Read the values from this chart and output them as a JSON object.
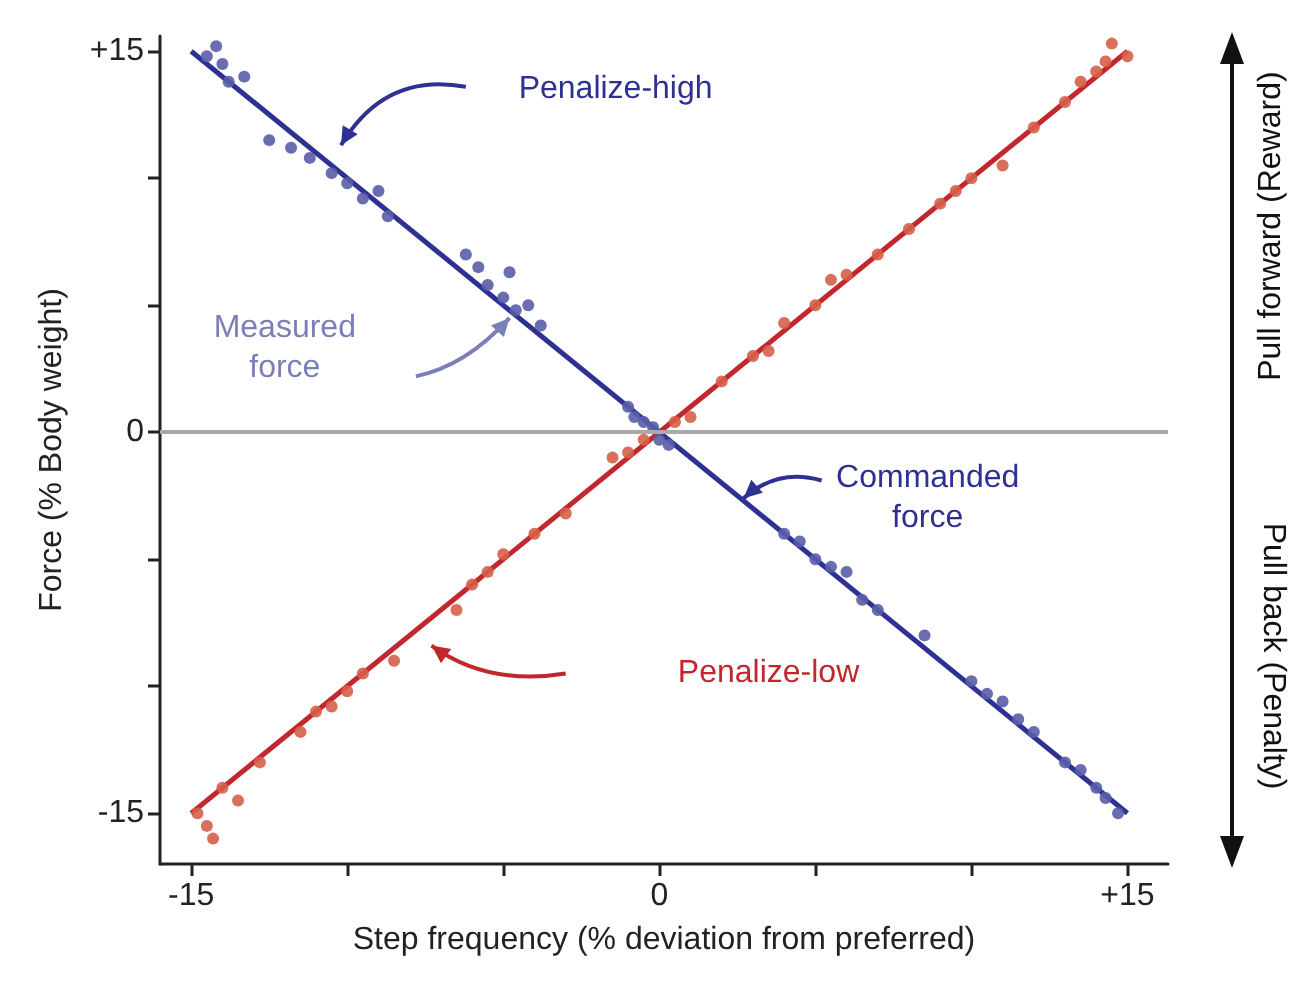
{
  "chart_data": {
    "type": "scatter",
    "xlabel": "Step frequency (% deviation from preferred)",
    "ylabel": "Force (% Body weight)",
    "xlim": [
      -16,
      16.3
    ],
    "ylim": [
      -17,
      15.6
    ],
    "xticks": [
      {
        "value": -15,
        "label": "-15"
      },
      {
        "value": -10,
        "label": null
      },
      {
        "value": -5,
        "label": null
      },
      0,
      {
        "value": 5,
        "label": null
      },
      {
        "value": 10,
        "label": null
      },
      {
        "value": 15,
        "label": "+15"
      }
    ],
    "yticks": [
      {
        "value": -15,
        "label": "-15"
      },
      {
        "value": -10,
        "label": null
      },
      {
        "value": -5,
        "label": null
      },
      0,
      {
        "value": 5,
        "label": null
      },
      {
        "value": 10,
        "label": null
      },
      {
        "value": 15,
        "label": "+15"
      }
    ],
    "grid": false,
    "legend": false,
    "marker": "circle",
    "ref_lines": [
      {
        "axis": "y",
        "value": 0,
        "color": "#aaaaaa"
      }
    ],
    "annotations": [
      "Measured force",
      {
        "text": "Commanded force",
        "x": 2.7,
        "y": -2.6
      },
      "Pull forward (Reward)",
      "Pull back (Penalty)"
    ],
    "series": [
      {
        "color": "#5a5ea8",
        "x": [
          -14.5,
          -14.2,
          -14,
          -13.8,
          -13.3,
          -12.5,
          -11.8,
          -11.2,
          -10.5,
          -10,
          -9.5,
          -9,
          -8.7,
          -6.2,
          -5.8,
          -5.5,
          -5,
          -4.8,
          -4.6,
          -4.2,
          -3.8,
          -1,
          -0.8,
          -0.5,
          -0.2,
          0,
          0.3,
          4,
          4.5,
          5,
          5.5,
          6,
          6.5,
          7,
          8.5,
          10,
          10.5,
          11,
          11.5,
          12,
          13,
          13.5,
          14,
          14.3,
          14.7
        ],
        "values": [
          14.8,
          15.2,
          14.5,
          13.8,
          14,
          11.5,
          11.2,
          10.8,
          10.2,
          9.8,
          9.2,
          9.5,
          8.5,
          7,
          6.5,
          5.8,
          5.3,
          6.3,
          4.8,
          5,
          4.2,
          1,
          0.6,
          0.4,
          0.2,
          -0.3,
          -0.5,
          -4,
          -4.3,
          -5,
          -5.3,
          -5.5,
          -6.6,
          -7,
          -8,
          -9.8,
          -10.3,
          -10.6,
          -11.3,
          -11.8,
          -13,
          -13.3,
          -14,
          -14.4,
          -15
        ]
      },
      {
        "color": "#d6604a",
        "x": [
          -14.8,
          -14.5,
          -14.3,
          -14,
          -13.5,
          -12.8,
          -11.5,
          -11,
          -10.5,
          -10,
          -9.5,
          -8.5,
          -6.5,
          -6,
          -5.5,
          -5,
          -4,
          -3,
          -1.5,
          -1,
          -0.5,
          0.5,
          1,
          2,
          3,
          3.5,
          4,
          5,
          5.5,
          6,
          7,
          8,
          9,
          9.5,
          10,
          11,
          12,
          13,
          13.5,
          14,
          14.3,
          14.5,
          15
        ],
        "values": [
          -15,
          -15.5,
          -16,
          -14,
          -14.5,
          -13,
          -11.8,
          -11,
          -10.8,
          -10.2,
          -9.5,
          -9,
          -7,
          -6,
          -5.5,
          -4.8,
          -4,
          -3.2,
          -1,
          -0.8,
          -0.3,
          0.4,
          0.6,
          2,
          3,
          3.2,
          4.3,
          5,
          6,
          6.2,
          7,
          8,
          9,
          9.5,
          10,
          10.5,
          12,
          13,
          13.8,
          14.2,
          14.6,
          15.3,
          14.8
        ]
      },
      {
        "type": "line",
        "marker": "none",
        "name": "Penalize-high",
        "color": "#2e3192",
        "x": [
          -15,
          15
        ],
        "values": [
          15,
          -15
        ]
      },
      {
        "type": "line",
        "marker": "none",
        "name": "Penalize-low",
        "color": "#c1272d",
        "x": [
          -15,
          15
        ],
        "values": [
          -15,
          15
        ]
      }
    ]
  }
}
